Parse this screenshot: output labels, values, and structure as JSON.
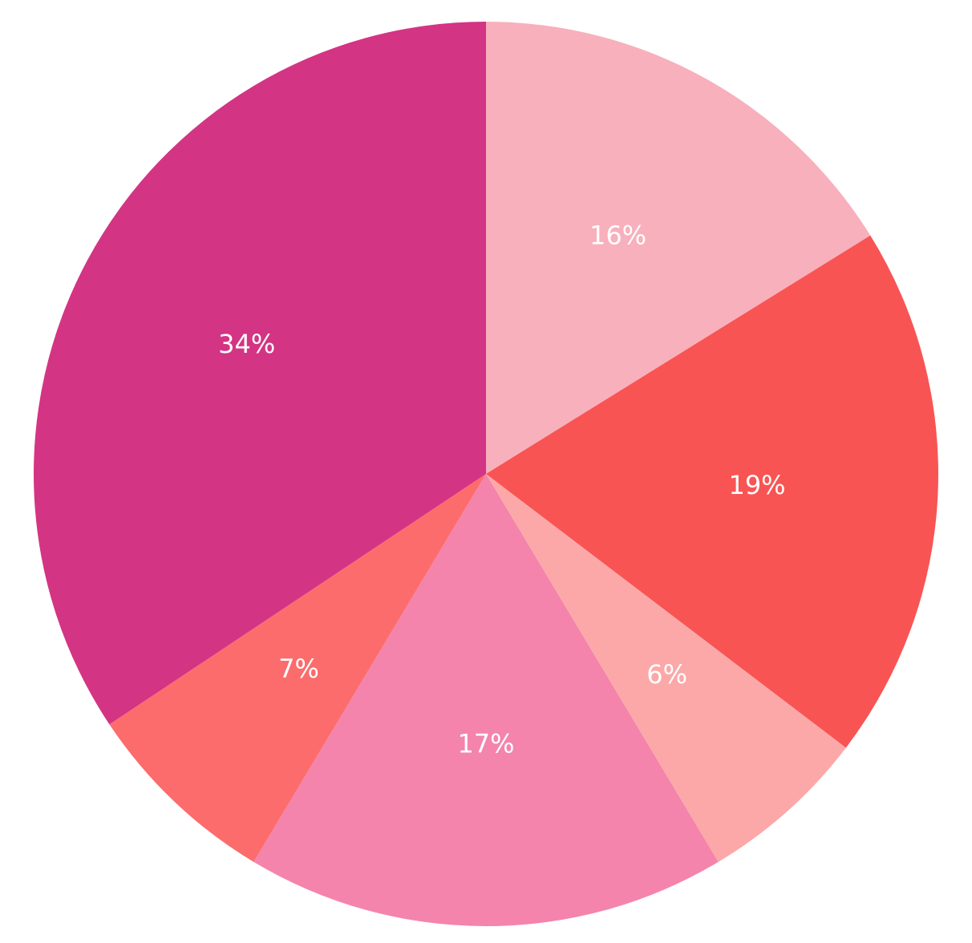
{
  "chart_data": {
    "type": "pie",
    "title": "",
    "start_angle_deg": 90,
    "direction": "clockwise",
    "slices": [
      {
        "value": 16,
        "label": "16%",
        "color": "#f8b0bc"
      },
      {
        "value": 19,
        "label": "19%",
        "color": "#f85454"
      },
      {
        "value": 6,
        "label": "6%",
        "color": "#fca8a8"
      },
      {
        "value": 17,
        "label": "17%",
        "color": "#f484ac"
      },
      {
        "value": 7,
        "label": "7%",
        "color": "#fc6c6c"
      },
      {
        "value": 34,
        "label": "34%",
        "color": "#d43484"
      }
    ]
  }
}
